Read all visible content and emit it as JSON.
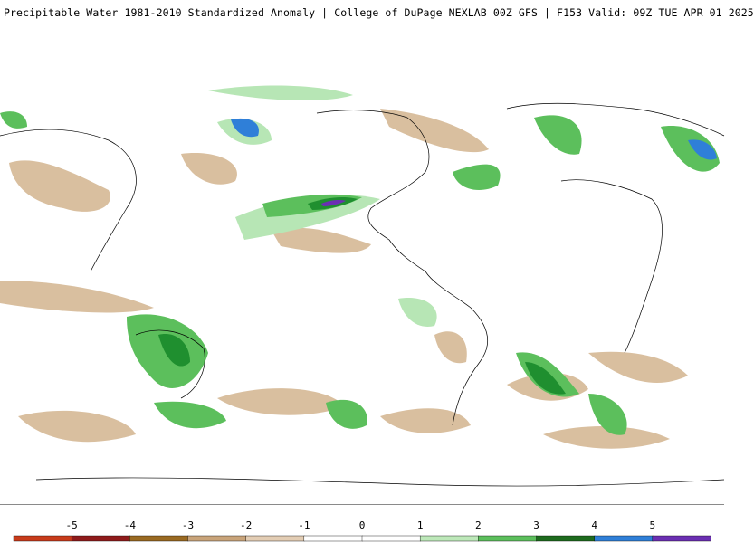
{
  "header": {
    "title": "Precipitable Water 1981-2010 Standardized Anomaly | College of DuPage NEXLAB  00Z GFS | F153 Valid: 09Z TUE APR 01 2025"
  },
  "map": {
    "field": "precipitable-water-standardized-anomaly",
    "projection": "global-cylindrical",
    "colors": {
      "neg_weak": "#d9bf9f",
      "neg_mod": "#c9a47a",
      "pos_weak": "#b7e6b5",
      "pos_mod": "#5cbf5c",
      "pos_strong": "#1f8f2f",
      "pos_very_strong": "#2f7fd8",
      "pos_extreme": "#6b2fb3",
      "coastline": "#000000"
    }
  },
  "legend": {
    "labels": [
      "-5",
      "-4",
      "-3",
      "-2",
      "-1",
      "0",
      "1",
      "2",
      "3",
      "4",
      "5"
    ],
    "colors": [
      "#c83b1b",
      "#8f1b1b",
      "#9a6a22",
      "#c9a47a",
      "#e3cdb4",
      "#ffffff",
      "#ffffff",
      "#bde8b9",
      "#5cbf5c",
      "#1e6b1e",
      "#2f7fd8",
      "#6b2fb3"
    ]
  }
}
